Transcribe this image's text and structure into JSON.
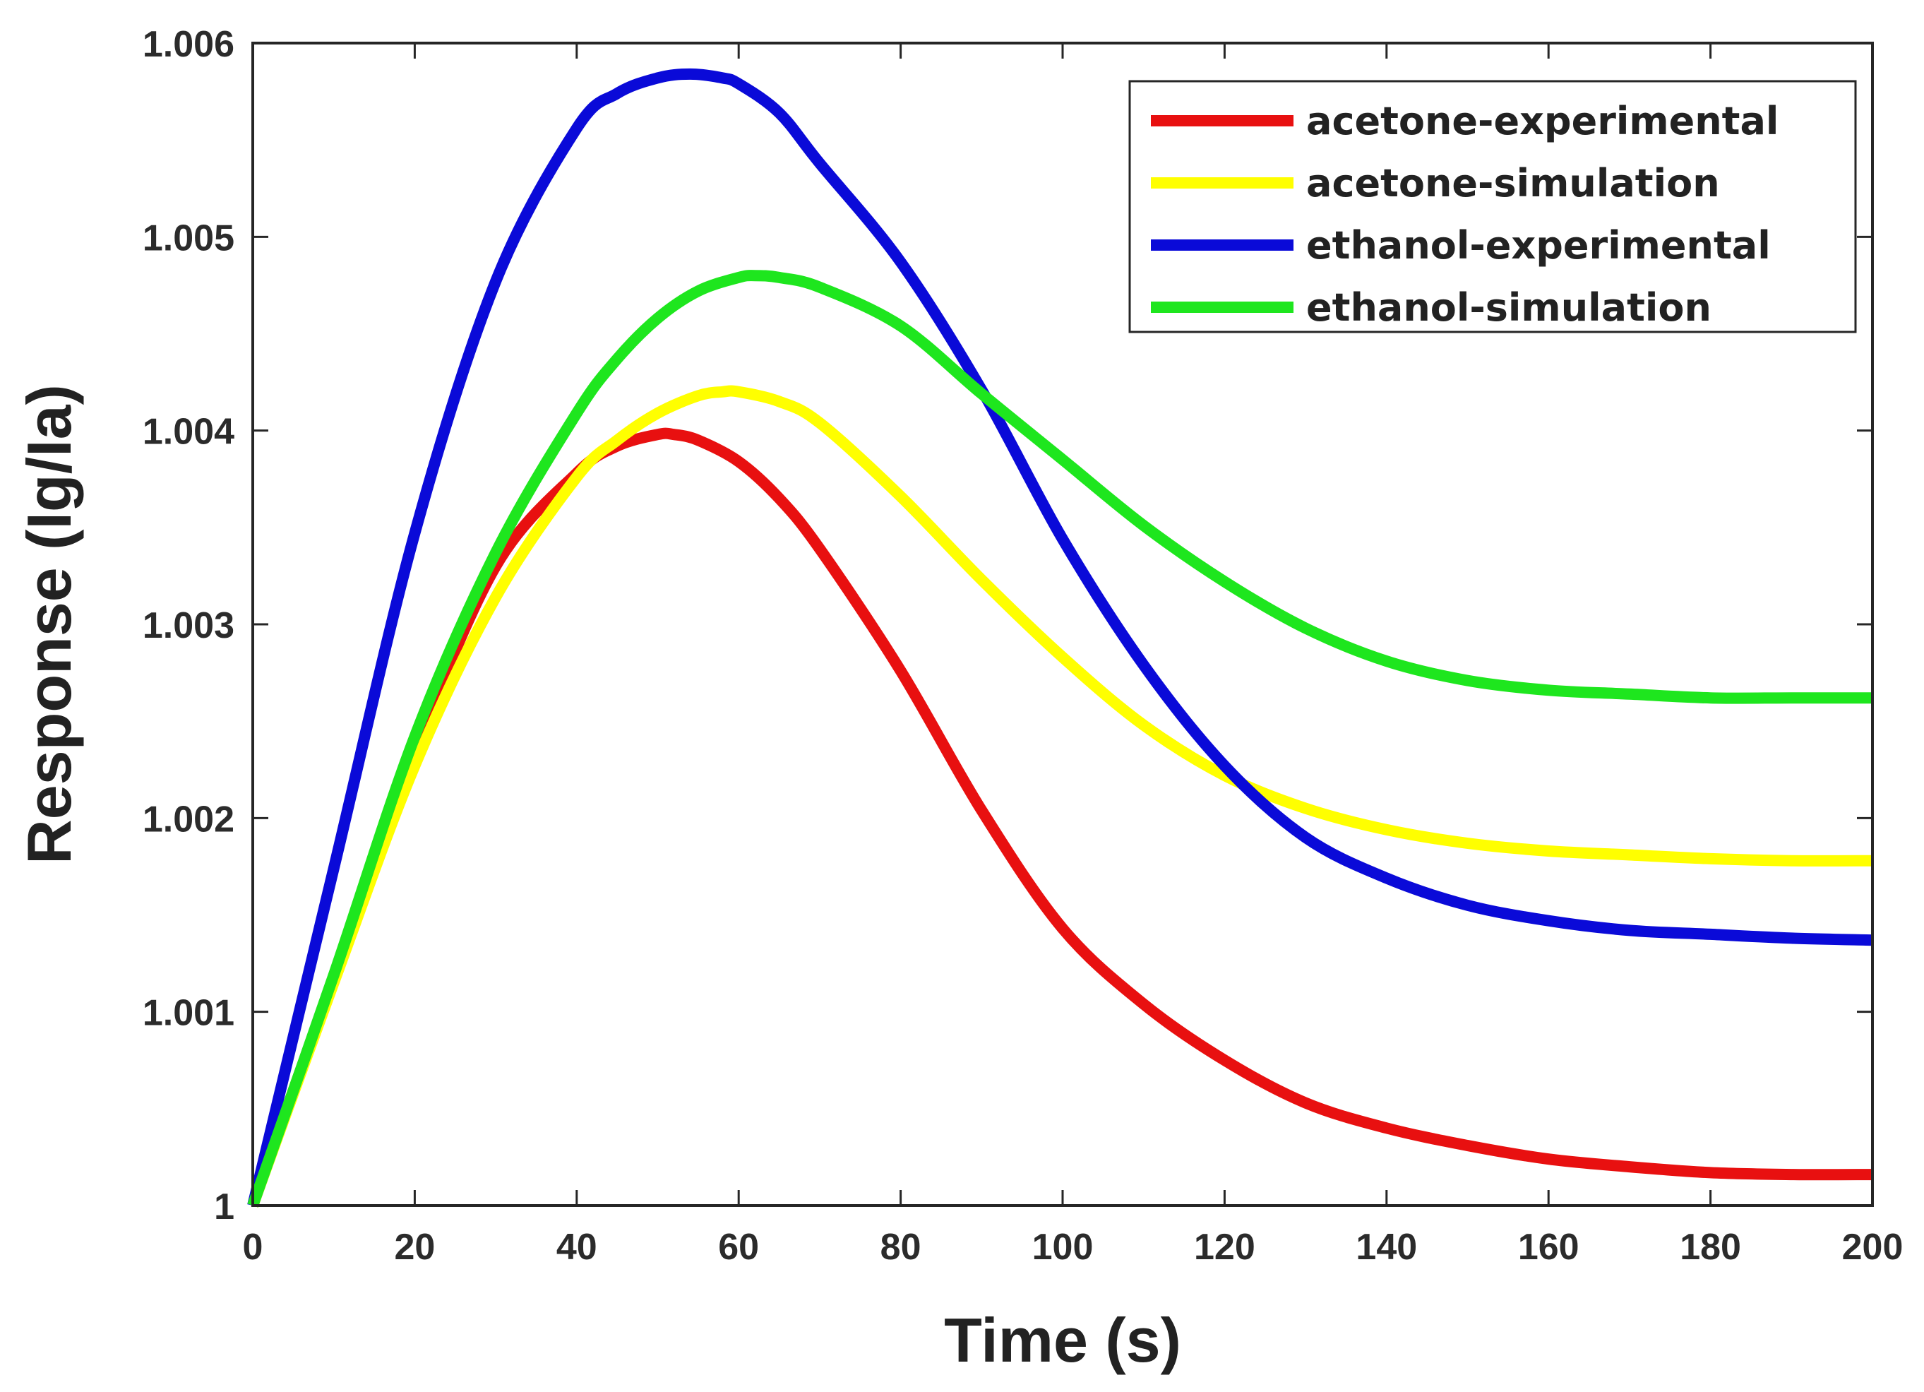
{
  "chart_data": {
    "type": "line",
    "title": "",
    "xlabel": "Time (s)",
    "ylabel": "Response (Ig/Ia)",
    "xlim": [
      0,
      200
    ],
    "ylim": [
      1,
      1.006
    ],
    "xticks": [
      0,
      20,
      40,
      60,
      80,
      100,
      120,
      140,
      160,
      180,
      200
    ],
    "yticks": [
      1,
      1.001,
      1.002,
      1.003,
      1.004,
      1.005,
      1.006
    ],
    "xtick_labels": [
      "0",
      "20",
      "40",
      "60",
      "80",
      "100",
      "120",
      "140",
      "160",
      "180",
      "200"
    ],
    "ytick_labels": [
      "1",
      "1.001",
      "1.002",
      "1.003",
      "1.004",
      "1.005",
      "1.006"
    ],
    "grid": false,
    "legend_position": "top-right",
    "series": [
      {
        "name": "acetone-experimental",
        "color": "#e81010",
        "x": [
          0,
          10,
          20,
          30,
          40,
          45,
          50,
          52,
          55,
          60,
          65,
          70,
          80,
          90,
          100,
          110,
          120,
          130,
          140,
          150,
          160,
          170,
          180,
          190,
          200
        ],
        "y": [
          1.0,
          1.00118,
          1.00234,
          1.0033,
          1.00378,
          1.00392,
          1.00398,
          1.00398,
          1.00395,
          1.00384,
          1.00365,
          1.00339,
          1.00276,
          1.00204,
          1.00143,
          1.00104,
          1.00075,
          1.00053,
          1.0004,
          1.00031,
          1.00024,
          1.0002,
          1.00017,
          1.00016,
          1.00016
        ]
      },
      {
        "name": "acetone-simulation",
        "color": "#ffff00",
        "x": [
          0,
          10,
          20,
          30,
          40,
          45,
          50,
          55,
          58,
          60,
          65,
          70,
          80,
          90,
          100,
          110,
          120,
          130,
          140,
          150,
          160,
          170,
          180,
          190,
          200
        ],
        "y": [
          1.0,
          1.00115,
          1.00227,
          1.00314,
          1.00376,
          1.00395,
          1.00409,
          1.00418,
          1.0042,
          1.0042,
          1.00415,
          1.00404,
          1.00366,
          1.00323,
          1.00283,
          1.00248,
          1.00222,
          1.00205,
          1.00194,
          1.00187,
          1.00183,
          1.00181,
          1.00179,
          1.00178,
          1.00178
        ]
      },
      {
        "name": "ethanol-experimental",
        "color": "#0a0ad8",
        "x": [
          0,
          10,
          20,
          30,
          40,
          45,
          50,
          54,
          58,
          60,
          65,
          70,
          80,
          90,
          100,
          110,
          120,
          130,
          140,
          150,
          160,
          170,
          180,
          190,
          200
        ],
        "y": [
          1.0,
          1.00174,
          1.00347,
          1.00477,
          1.00556,
          1.00574,
          1.00582,
          1.00584,
          1.00582,
          1.00579,
          1.00564,
          1.00538,
          1.00487,
          1.00421,
          1.00344,
          1.00279,
          1.00227,
          1.0019,
          1.00169,
          1.00155,
          1.00147,
          1.00142,
          1.0014,
          1.00138,
          1.00137
        ]
      },
      {
        "name": "ethanol-simulation",
        "color": "#1ee61e",
        "x": [
          0,
          10,
          20,
          30,
          40,
          45,
          50,
          55,
          60,
          62,
          65,
          70,
          80,
          90,
          100,
          110,
          120,
          130,
          140,
          150,
          160,
          170,
          180,
          190,
          200
        ],
        "y": [
          1.0,
          1.00119,
          1.00242,
          1.00337,
          1.00409,
          1.00437,
          1.00458,
          1.00472,
          1.00479,
          1.0048,
          1.00479,
          1.00474,
          1.00454,
          1.00419,
          1.00385,
          1.00351,
          1.00322,
          1.00298,
          1.00281,
          1.00271,
          1.00266,
          1.00264,
          1.00262,
          1.00262,
          1.00262
        ]
      }
    ]
  }
}
